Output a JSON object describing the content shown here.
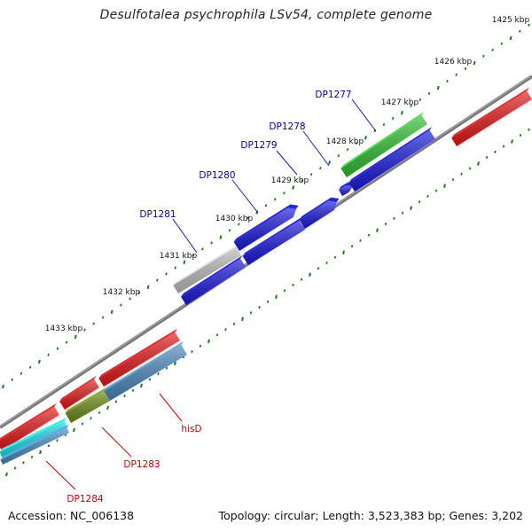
{
  "title": "Desulfotalea psychrophila LSv54, complete genome",
  "footer": {
    "accession": "Accession: NC_006138",
    "summary": "Topology: circular; Length: 3,523,383 bp; Genes: 3,202"
  },
  "colors": {
    "backbone": "#777777",
    "tick": "#1a7a1a",
    "kbp_label": "#111111",
    "gene_label_blue": "#0000aa",
    "gene_label_red": "#cc0000",
    "leader_blue": "#1a1aa0",
    "leader_red": "#cc0000"
  },
  "scale_labels": [
    "1425 kbp",
    "1426 kbp",
    "1427 kbp",
    "1428 kbp",
    "1429 kbp",
    "1430 kbp",
    "1431 kbp",
    "1432 kbp",
    "1433 kbp"
  ],
  "gene_labels": [
    {
      "text": "DP1277",
      "color": "blue"
    },
    {
      "text": "DP1278",
      "color": "blue"
    },
    {
      "text": "DP1279",
      "color": "blue"
    },
    {
      "text": "DP1280",
      "color": "blue"
    },
    {
      "text": "DP1281",
      "color": "blue"
    },
    {
      "text": "hisD",
      "color": "red"
    },
    {
      "text": "DP1283",
      "color": "red"
    },
    {
      "text": "DP1284",
      "color": "red"
    }
  ],
  "features": [
    {
      "name": "green-gene",
      "color": "#33bb33"
    },
    {
      "name": "blue-gene-a",
      "color": "#1a1ad8"
    },
    {
      "name": "blue-gene-b",
      "color": "#1a1ad8"
    },
    {
      "name": "blue-gene-c",
      "color": "#1a1ad8"
    },
    {
      "name": "blue-gene-d",
      "color": "#1a1ad8"
    },
    {
      "name": "blue-gene-e",
      "color": "#1a1ad8"
    },
    {
      "name": "blue-gene-f",
      "color": "#1a1ad8"
    },
    {
      "name": "grey-feature",
      "color": "#bbbbbb"
    },
    {
      "name": "red-gene-top-right",
      "color": "#e01a1a"
    },
    {
      "name": "red-gene-a",
      "color": "#e01a1a"
    },
    {
      "name": "red-gene-b",
      "color": "#e01a1a"
    },
    {
      "name": "red-gene-c",
      "color": "#e01a1a"
    },
    {
      "name": "steelblue-gene-a",
      "color": "#4a86b8"
    },
    {
      "name": "steelblue-gene-b",
      "color": "#4a86b8"
    },
    {
      "name": "olive-gene",
      "color": "#6b8a1a"
    },
    {
      "name": "cyan-gene",
      "color": "#1ad8e0"
    }
  ]
}
